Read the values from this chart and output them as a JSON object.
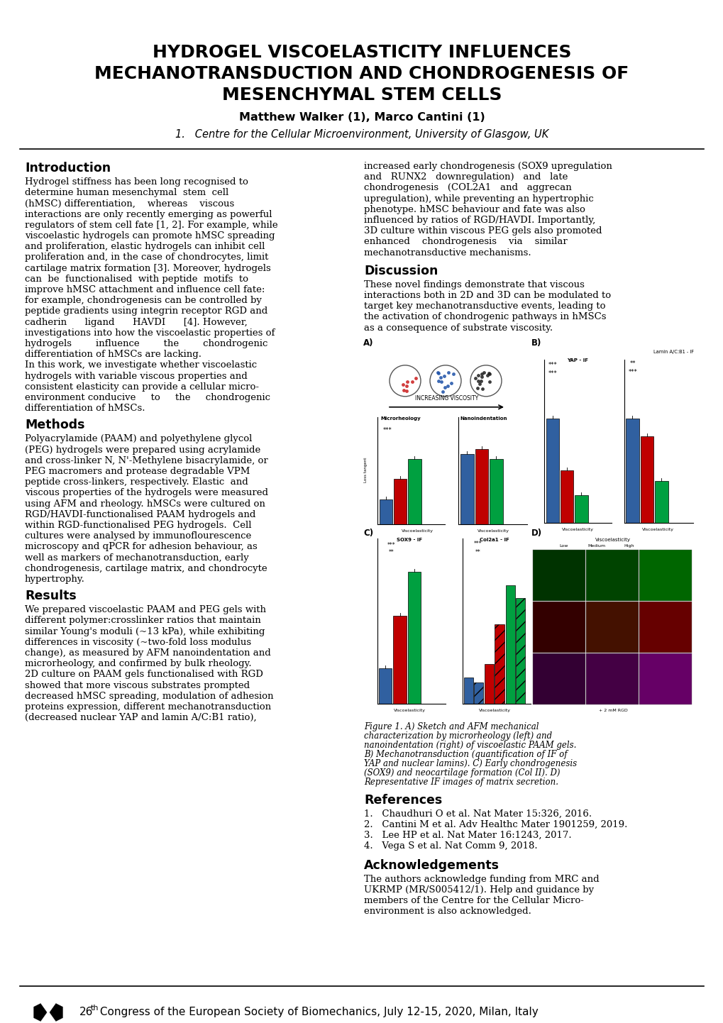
{
  "title_line1": "HYDROGEL VISCOELASTICITY INFLUENCES",
  "title_line2": "MECHANOTRANSDUCTION AND CHONDROGENESIS OF",
  "title_line3": "MESENCHYMAL STEM CELLS",
  "authors": "Matthew Walker (1), Marco Cantini (1)",
  "affiliation": "1.   Centre for the Cellular Microenvironment, University of Glasgow, UK",
  "bg_color": "#ffffff",
  "intro_heading": "Introduction",
  "methods_heading": "Methods",
  "results_heading": "Results",
  "discussion_heading": "Discussion",
  "references_heading": "References",
  "acknowledgements_heading": "Acknowledgements",
  "footer_number": "26",
  "footer_superscript": "th",
  "footer_text": " Congress of the European Society of Biomechanics, July 12-15, 2020, Milan, Italy",
  "ref1": "1.   Chaudhuri O et al. Nat Mater 15:326, 2016.",
  "ref2": "2.   Cantini M et al. Adv Healthc Mater 1901259, 2019.",
  "ref3": "3.   Lee HP et al. Nat Mater 16:1243, 2017.",
  "ref4": "4.   Vega S et al. Nat Comm 9, 2018.",
  "fig_caption_line1": "Figure 1. A) Sketch and AFM mechanical",
  "fig_caption_line2": "characterization by microrheology (left) and",
  "fig_caption_line3": "nanoindentation (right) of viscoelastic PAAM gels.",
  "fig_caption_line4": "B) Mechanotransduction (quantification of IF of",
  "fig_caption_line5": "YAP and nuclear lamins). C) Early chondrogenesis",
  "fig_caption_line6": "(SOX9) and neocartilage formation (Col II). D)",
  "fig_caption_line7": "Representative IF images of matrix secretion.",
  "bar_blue": "#3060a0",
  "bar_red": "#c00000",
  "bar_green": "#00a040",
  "bar_blue_light": "#6090c0"
}
